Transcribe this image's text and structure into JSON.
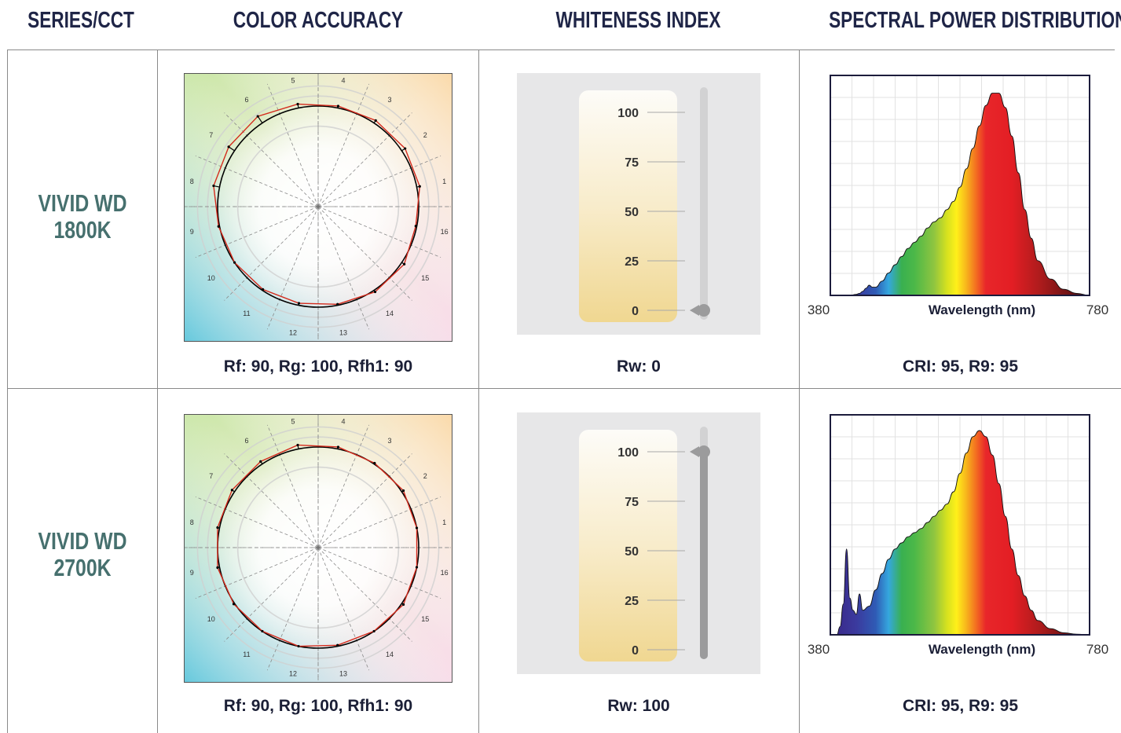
{
  "headers": {
    "series": "SERIES/CCT",
    "color_accuracy": "COLOR ACCURACY",
    "whiteness_index": "WHITENESS INDEX",
    "spd": "SPECTRAL POWER DISTRIBUTION"
  },
  "rows": [
    {
      "series_line1": "VIVID WD",
      "series_line2": "1800K",
      "color_caption": "Rf: 90, Rg: 100, Rfh1: 90",
      "whiteness_caption": "Rw: 0",
      "spd_caption": "CRI: 95, R9: 95"
    },
    {
      "series_line1": "VIVID WD",
      "series_line2": "2700K",
      "color_caption": "Rf: 90, Rg: 100, Rfh1: 90",
      "whiteness_caption": "Rw: 100",
      "spd_caption": "CRI: 95, R9: 95"
    }
  ],
  "chart_data": [
    {
      "type": "radar",
      "name": "color-vector-graphic-1800K",
      "hue_bins": [
        "1",
        "2",
        "3",
        "4",
        "5",
        "6",
        "7",
        "8",
        "9",
        "10",
        "11",
        "12",
        "13",
        "14",
        "15",
        "16"
      ],
      "reference_radius": 1.0,
      "test_radius": [
        1.03,
        1.04,
        1.03,
        1.02,
        1.04,
        1.08,
        1.07,
        1.06,
        1.01,
        1.0,
        0.99,
        0.98,
        0.99,
        1.02,
        1.03,
        0.99
      ],
      "colors": {
        "reference": "#000000",
        "test": "#d42a1c"
      }
    },
    {
      "type": "radar",
      "name": "color-vector-graphic-2700K",
      "hue_bins": [
        "1",
        "2",
        "3",
        "4",
        "5",
        "6",
        "7",
        "8",
        "9",
        "10",
        "11",
        "12",
        "13",
        "14",
        "15",
        "16"
      ],
      "reference_radius": 1.0,
      "test_radius": [
        1.0,
        1.02,
        1.01,
        1.02,
        1.04,
        1.03,
        1.03,
        1.02,
        1.02,
        1.01,
        1.0,
        1.0,
        0.99,
        1.0,
        1.02,
        1.0
      ],
      "colors": {
        "reference": "#000000",
        "test": "#d42a1c"
      }
    },
    {
      "type": "gauge",
      "name": "whiteness-index-1800K",
      "ticks": [
        "100",
        "75",
        "50",
        "25",
        "0"
      ],
      "range": [
        0,
        100
      ],
      "value": 0
    },
    {
      "type": "gauge",
      "name": "whiteness-index-2700K",
      "ticks": [
        "100",
        "75",
        "50",
        "25",
        "0"
      ],
      "range": [
        0,
        100
      ],
      "value": 100
    },
    {
      "type": "area",
      "name": "spd-1800K",
      "xlabel": "Wavelength (nm)",
      "xlim": [
        380,
        780
      ],
      "ylim": [
        0,
        1
      ],
      "x_tick_labels": [
        "380",
        "780"
      ],
      "x": [
        380,
        410,
        420,
        425,
        430,
        435,
        440,
        445,
        450,
        460,
        470,
        480,
        490,
        500,
        510,
        520,
        530,
        540,
        550,
        560,
        570,
        580,
        590,
        600,
        610,
        620,
        630,
        640,
        650,
        660,
        670,
        680,
        690,
        700,
        720,
        740,
        760,
        780
      ],
      "y": [
        0,
        0,
        0.005,
        0.01,
        0.02,
        0.035,
        0.05,
        0.04,
        0.04,
        0.07,
        0.11,
        0.15,
        0.19,
        0.23,
        0.26,
        0.29,
        0.33,
        0.36,
        0.38,
        0.42,
        0.46,
        0.53,
        0.62,
        0.72,
        0.83,
        0.93,
        0.99,
        0.99,
        0.92,
        0.78,
        0.6,
        0.42,
        0.28,
        0.17,
        0.08,
        0.03,
        0.01,
        0
      ]
    },
    {
      "type": "area",
      "name": "spd-2700K",
      "xlabel": "Wavelength (nm)",
      "xlim": [
        380,
        780
      ],
      "ylim": [
        0,
        1
      ],
      "x_tick_labels": [
        "380",
        "780"
      ],
      "x": [
        380,
        390,
        395,
        400,
        405,
        410,
        415,
        420,
        425,
        430,
        440,
        450,
        460,
        470,
        480,
        490,
        500,
        510,
        520,
        530,
        540,
        550,
        560,
        570,
        580,
        590,
        600,
        610,
        620,
        630,
        640,
        650,
        660,
        670,
        680,
        690,
        700,
        720,
        740,
        760,
        780
      ],
      "y": [
        0,
        0,
        0.04,
        0.15,
        0.42,
        0.18,
        0.12,
        0.1,
        0.2,
        0.12,
        0.14,
        0.22,
        0.3,
        0.37,
        0.42,
        0.45,
        0.48,
        0.5,
        0.52,
        0.55,
        0.58,
        0.61,
        0.64,
        0.7,
        0.79,
        0.89,
        0.97,
        1.0,
        0.97,
        0.88,
        0.74,
        0.58,
        0.42,
        0.29,
        0.19,
        0.12,
        0.07,
        0.03,
        0.01,
        0.003,
        0
      ]
    }
  ]
}
